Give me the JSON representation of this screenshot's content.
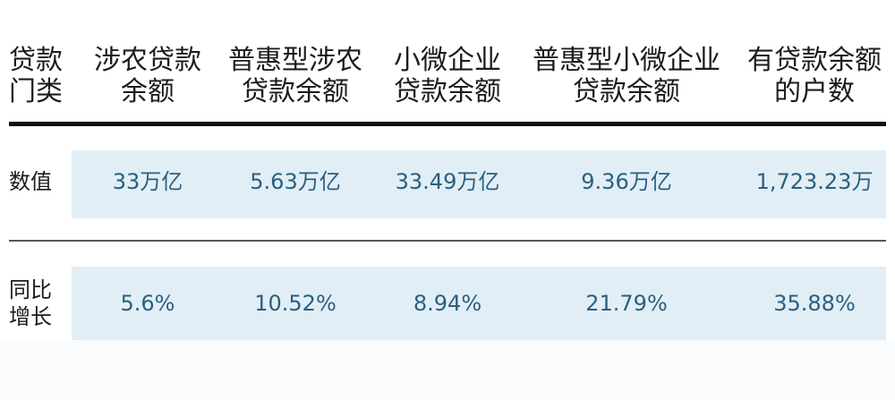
{
  "table": {
    "headers": [
      {
        "line1": "贷款",
        "line2": "门类"
      },
      {
        "line1": "涉农贷款",
        "line2": "余额"
      },
      {
        "line1": "普惠型涉农",
        "line2": "贷款余额"
      },
      {
        "line1": "小微企业",
        "line2": "贷款余额"
      },
      {
        "line1": "普惠型小微企业",
        "line2": "贷款余额"
      },
      {
        "line1": "有贷款余额",
        "line2": "的户数"
      }
    ],
    "rows": [
      {
        "label_line1": "数值",
        "label_line2": "",
        "cells": [
          "33万亿",
          "5.63万亿",
          "33.49万亿",
          "9.36万亿",
          "1,723.23万"
        ]
      },
      {
        "label_line1": "同比",
        "label_line2": "增长",
        "cells": [
          "5.6%",
          "10.52%",
          "8.94%",
          "21.79%",
          "35.88%"
        ]
      }
    ]
  },
  "colors": {
    "band": "#e1eef5",
    "value_text": "#2a5f80",
    "header_text": "#1c1c1c",
    "thick_rule": "#111111"
  }
}
